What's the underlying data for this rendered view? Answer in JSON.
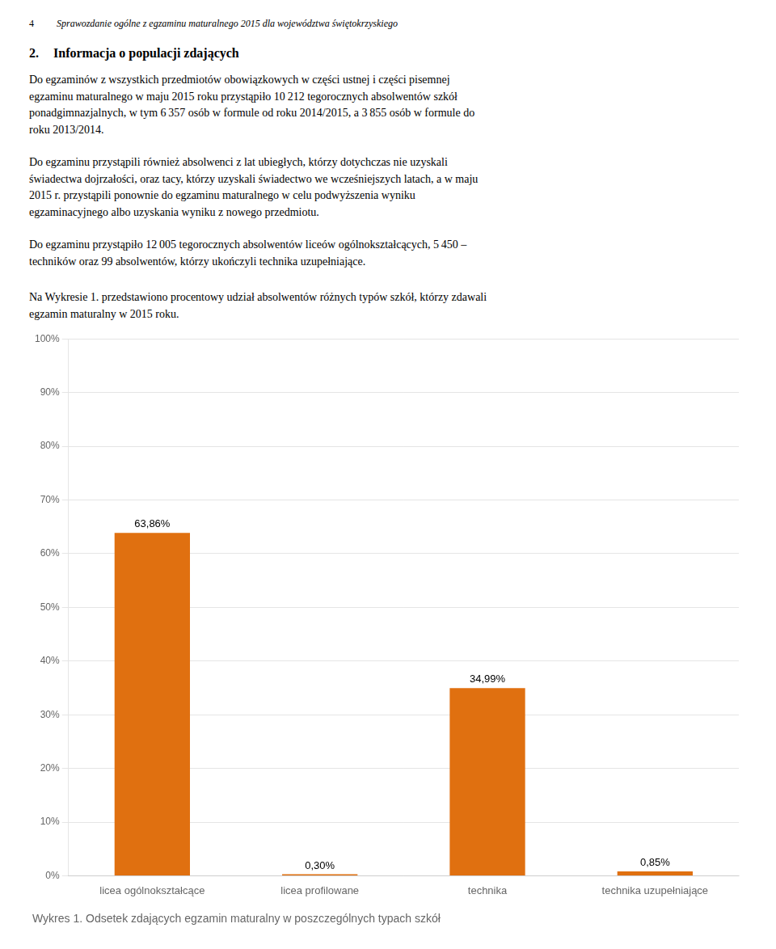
{
  "header": [
    "4",
    "Sprawozdanie ogólne z egzaminu maturalnego 2015 dla województwa świętokrzyskiego"
  ],
  "heading": [
    "2.",
    "Informacja o populacji zdających"
  ],
  "paragraphs": [
    [
      "Do egzaminów z wszystkich przedmiotów obowiązkowych w części ustnej i części pisemnej",
      "egzaminu maturalnego w maju 2015 roku przystąpiło 10 212 tegorocznych absolwentów szkół",
      "ponadgimnazjalnych, w tym 6 357 osób w formule od roku 2014/2015, a 3 855 osób w formule do",
      "roku 2013/2014."
    ],
    [
      "Do egzaminu przystąpili również absolwenci z lat ubiegłych, którzy dotychczas nie uzyskali",
      "świadectwa dojrzałości, oraz tacy, którzy uzyskali świadectwo we wcześniejszych latach, a w maju",
      "2015 r. przystąpili ponownie do egzaminu maturalnego w celu podwyższenia wyniku",
      "egzaminacyjnego albo uzyskania wyniku z nowego przedmiotu."
    ],
    [
      "Do egzaminu przystąpiło 12 005 tegorocznych absolwentów liceów ogólnokształcących, 5 450 –",
      "techników oraz 99 absolwentów, którzy ukończyli technika uzupełniające."
    ],
    [
      "Na Wykresie 1. przedstawiono procentowy udział absolwentów różnych typów szkół, którzy zdawali",
      "egzamin maturalny w 2015 roku."
    ]
  ],
  "chart_data": {
    "type": "bar",
    "title": "Wykres 1. Odsetek zdających egzamin maturalny w poszczególnych typach szkół",
    "categories": [
      "licea ogólnokształcące",
      "licea profilowane",
      "technika",
      "technika uzupełniające"
    ],
    "values": [
      63.86,
      0.3,
      34.99,
      0.85
    ],
    "value_labels": [
      "63,86%",
      "0,30%",
      "34,99%",
      "0,85%"
    ],
    "color": "#E07010",
    "ylim": [
      0,
      100
    ],
    "yticks": [
      {
        "value": 0,
        "label": "0%"
      },
      {
        "value": 10,
        "label": "10%"
      },
      {
        "value": 20,
        "label": "20%"
      },
      {
        "value": 30,
        "label": "30%"
      },
      {
        "value": 40,
        "label": "40%"
      },
      {
        "value": 50,
        "label": "50%"
      },
      {
        "value": 60,
        "label": "60%"
      },
      {
        "value": 70,
        "label": "70%"
      },
      {
        "value": 80,
        "label": "80%"
      },
      {
        "value": 90,
        "label": "90%"
      },
      {
        "value": 100,
        "label": "100%"
      }
    ],
    "grid": true,
    "data_labels": true
  }
}
